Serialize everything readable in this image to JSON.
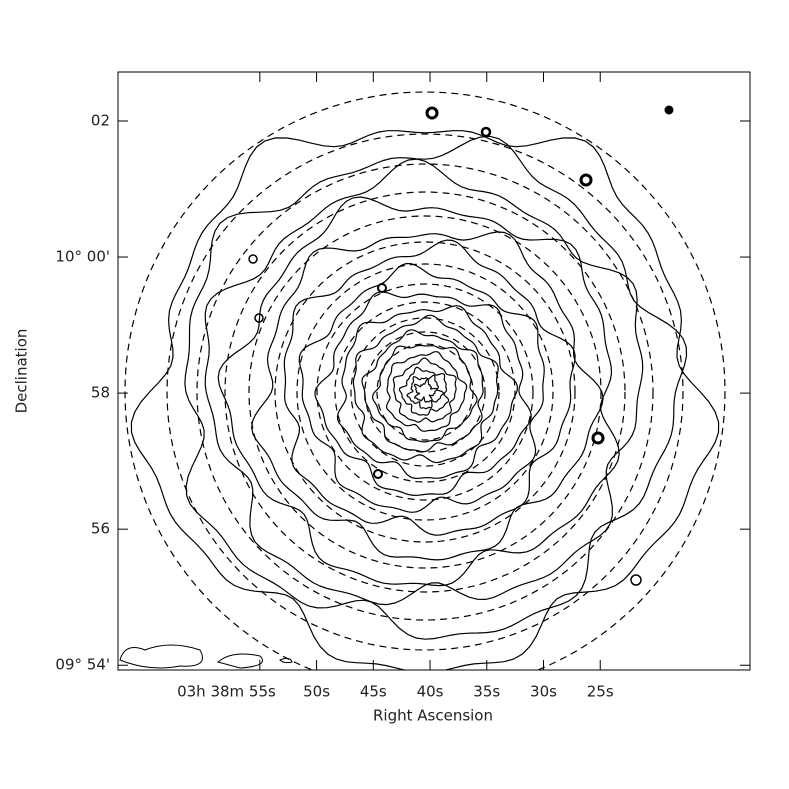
{
  "chart_data": {
    "type": "contour",
    "xlabel": "Right Ascension",
    "ylabel": "Declination",
    "xlim": [
      67.5,
      11.8
    ],
    "xticks": [
      {
        "value": 55,
        "label": "03h 38m 55s"
      },
      {
        "value": 50,
        "label": "50s"
      },
      {
        "value": 45,
        "label": "45s"
      },
      {
        "value": 40,
        "label": "40s"
      },
      {
        "value": 35,
        "label": "35s"
      },
      {
        "value": 30,
        "label": "30s"
      },
      {
        "value": 25,
        "label": "25s"
      }
    ],
    "ylim": [
      53.93,
      62.72
    ],
    "yticks": [
      {
        "value": 54,
        "label": "09° 54'"
      },
      56,
      58,
      {
        "value": 60,
        "label": "10° 00'"
      },
      {
        "value": 62,
        "label": "02"
      }
    ],
    "color": "#000000"
  }
}
